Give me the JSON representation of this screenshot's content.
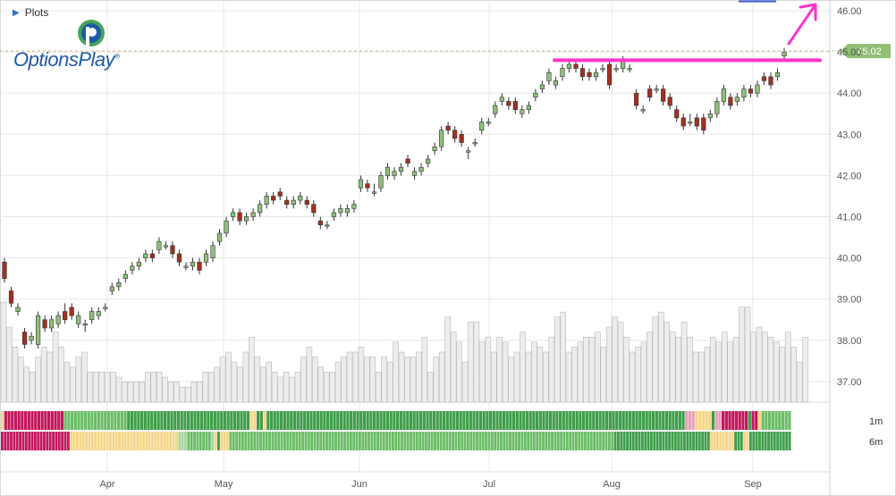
{
  "header": {
    "plots_label": "Plots",
    "logo_text": "OptionsPlay",
    "logo_reg": "®"
  },
  "price_tag": "45.02",
  "colors": {
    "up": "#8fc07a",
    "down": "#a33020",
    "magenta": "#ff33cc",
    "tag": "#8fbf74",
    "vol": "#ededed",
    "vol_stroke": "#b8b8b8",
    "grid": "#e8e8e8",
    "blue_bar": "#3355cc"
  },
  "score_colors": {
    "r": "#c2185b",
    "p": "#e8a0b8",
    "y": "#f5d68a",
    "l": "#a8d5a0",
    "m": "#6bbd67",
    "g": "#3f9e4a"
  },
  "chart_data": {
    "type": "candlestick",
    "y_ticks": [
      "37.00",
      "38.00",
      "39.00",
      "40.00",
      "41.00",
      "42.00",
      "43.00",
      "44.00",
      "45.00",
      "46.00"
    ],
    "x_ticks": [
      "Apr",
      "May",
      "Jun",
      "Jul",
      "Aug",
      "Sep"
    ],
    "ylim": [
      36.5,
      46.3
    ],
    "resistance_level": 44.8,
    "last_price": 45.02,
    "candles": [
      [
        39.9,
        39.5,
        40.0,
        39.4
      ],
      [
        39.2,
        38.9,
        39.3,
        38.8
      ],
      [
        38.7,
        38.8,
        38.9,
        38.6
      ],
      [
        38.2,
        37.9,
        38.3,
        37.8
      ],
      [
        38.0,
        38.1,
        38.2,
        37.9
      ],
      [
        37.9,
        38.6,
        38.7,
        37.8
      ],
      [
        38.5,
        38.3,
        38.6,
        38.2
      ],
      [
        38.3,
        38.5,
        38.6,
        38.2
      ],
      [
        38.4,
        38.6,
        38.7,
        38.3
      ],
      [
        38.7,
        38.5,
        38.9,
        38.4
      ],
      [
        38.8,
        38.6,
        38.9,
        38.5
      ],
      [
        38.4,
        38.6,
        38.7,
        38.3
      ],
      [
        38.4,
        38.4,
        38.5,
        38.2
      ],
      [
        38.5,
        38.7,
        38.8,
        38.4
      ],
      [
        38.6,
        38.7,
        38.8,
        38.5
      ],
      [
        38.8,
        38.8,
        38.9,
        38.7
      ],
      [
        39.2,
        39.3,
        39.4,
        39.1
      ],
      [
        39.3,
        39.4,
        39.5,
        39.2
      ],
      [
        39.5,
        39.6,
        39.7,
        39.4
      ],
      [
        39.7,
        39.8,
        39.9,
        39.6
      ],
      [
        39.8,
        39.9,
        40.0,
        39.7
      ],
      [
        40.0,
        40.1,
        40.2,
        39.9
      ],
      [
        40.1,
        40.0,
        40.2,
        39.9
      ],
      [
        40.2,
        40.4,
        40.5,
        40.1
      ],
      [
        40.3,
        40.3,
        40.4,
        40.2
      ],
      [
        40.3,
        40.1,
        40.4,
        40.0
      ],
      [
        40.1,
        39.9,
        40.2,
        39.8
      ],
      [
        39.8,
        39.8,
        39.9,
        39.7
      ],
      [
        39.8,
        39.9,
        40.0,
        39.7
      ],
      [
        39.9,
        39.7,
        40.0,
        39.6
      ],
      [
        39.9,
        40.1,
        40.2,
        39.8
      ],
      [
        40.0,
        40.3,
        40.4,
        39.9
      ],
      [
        40.4,
        40.6,
        40.7,
        40.3
      ],
      [
        40.6,
        40.9,
        41.0,
        40.5
      ],
      [
        41.0,
        41.1,
        41.2,
        40.9
      ],
      [
        41.1,
        40.9,
        41.2,
        40.8
      ],
      [
        40.9,
        41.0,
        41.1,
        40.8
      ],
      [
        41.0,
        41.1,
        41.2,
        40.9
      ],
      [
        41.1,
        41.3,
        41.4,
        41.0
      ],
      [
        41.3,
        41.5,
        41.6,
        41.2
      ],
      [
        41.5,
        41.4,
        41.6,
        41.3
      ],
      [
        41.6,
        41.5,
        41.7,
        41.4
      ],
      [
        41.4,
        41.3,
        41.5,
        41.2
      ],
      [
        41.3,
        41.4,
        41.5,
        41.2
      ],
      [
        41.4,
        41.5,
        41.6,
        41.3
      ],
      [
        41.4,
        41.3,
        41.5,
        41.2
      ],
      [
        41.3,
        41.1,
        41.4,
        41.0
      ],
      [
        40.9,
        40.8,
        41.0,
        40.7
      ],
      [
        40.8,
        40.8,
        40.9,
        40.7
      ],
      [
        41.0,
        41.1,
        41.2,
        40.9
      ],
      [
        41.1,
        41.2,
        41.3,
        41.0
      ],
      [
        41.1,
        41.2,
        41.3,
        41.0
      ],
      [
        41.2,
        41.3,
        41.4,
        41.1
      ],
      [
        41.7,
        41.9,
        42.0,
        41.6
      ],
      [
        41.8,
        41.7,
        41.9,
        41.6
      ],
      [
        41.6,
        41.6,
        41.8,
        41.5
      ],
      [
        41.7,
        42.0,
        42.1,
        41.6
      ],
      [
        42.0,
        42.2,
        42.3,
        41.9
      ],
      [
        42.0,
        42.1,
        42.2,
        41.9
      ],
      [
        42.1,
        42.2,
        42.3,
        42.0
      ],
      [
        42.4,
        42.3,
        42.5,
        42.2
      ],
      [
        42.0,
        42.1,
        42.2,
        41.9
      ],
      [
        42.1,
        42.2,
        42.3,
        42.0
      ],
      [
        42.3,
        42.4,
        42.5,
        42.2
      ],
      [
        42.6,
        42.7,
        42.8,
        42.5
      ],
      [
        42.7,
        43.1,
        43.2,
        42.6
      ],
      [
        43.2,
        43.1,
        43.3,
        43.0
      ],
      [
        43.1,
        42.9,
        43.2,
        42.8
      ],
      [
        43.0,
        42.8,
        43.1,
        42.7
      ],
      [
        42.6,
        42.6,
        42.7,
        42.4
      ],
      [
        42.8,
        42.8,
        42.9,
        42.7
      ],
      [
        43.1,
        43.3,
        43.4,
        43.0
      ],
      [
        43.3,
        43.3,
        43.4,
        43.2
      ],
      [
        43.5,
        43.7,
        43.8,
        43.4
      ],
      [
        43.8,
        43.9,
        44.0,
        43.7
      ],
      [
        43.8,
        43.7,
        43.9,
        43.6
      ],
      [
        43.8,
        43.6,
        43.9,
        43.5
      ],
      [
        43.5,
        43.6,
        43.7,
        43.4
      ],
      [
        43.6,
        43.7,
        43.8,
        43.5
      ],
      [
        43.9,
        44.0,
        44.1,
        43.8
      ],
      [
        44.1,
        44.2,
        44.3,
        44.0
      ],
      [
        44.3,
        44.5,
        44.6,
        44.2
      ],
      [
        44.2,
        44.3,
        44.4,
        44.1
      ],
      [
        44.4,
        44.6,
        44.7,
        44.3
      ],
      [
        44.6,
        44.7,
        44.8,
        44.5
      ],
      [
        44.7,
        44.6,
        44.8,
        44.5
      ],
      [
        44.6,
        44.4,
        44.7,
        44.3
      ],
      [
        44.5,
        44.4,
        44.6,
        44.3
      ],
      [
        44.4,
        44.5,
        44.6,
        44.3
      ],
      [
        44.6,
        44.6,
        44.7,
        44.5
      ],
      [
        44.7,
        44.2,
        44.8,
        44.1
      ],
      [
        44.6,
        44.6,
        44.7,
        44.5
      ],
      [
        44.6,
        44.8,
        44.9,
        44.5
      ],
      [
        44.6,
        44.6,
        44.7,
        44.5
      ],
      [
        44.0,
        43.7,
        44.1,
        43.6
      ],
      [
        43.6,
        43.6,
        43.7,
        43.5
      ],
      [
        44.1,
        43.9,
        44.2,
        43.8
      ],
      [
        44.1,
        44.1,
        44.2,
        44.0
      ],
      [
        44.1,
        43.8,
        44.2,
        43.7
      ],
      [
        43.9,
        43.7,
        44.0,
        43.6
      ],
      [
        43.6,
        43.4,
        43.7,
        43.3
      ],
      [
        43.4,
        43.2,
        43.5,
        43.1
      ],
      [
        43.3,
        43.3,
        43.5,
        43.2
      ],
      [
        43.4,
        43.2,
        43.5,
        43.1
      ],
      [
        43.4,
        43.1,
        43.5,
        43.0
      ],
      [
        43.4,
        43.5,
        43.6,
        43.3
      ],
      [
        43.5,
        43.8,
        43.9,
        43.4
      ],
      [
        43.8,
        44.1,
        44.2,
        43.7
      ],
      [
        43.9,
        43.7,
        44.0,
        43.6
      ],
      [
        43.8,
        43.9,
        44.0,
        43.7
      ],
      [
        43.9,
        44.1,
        44.2,
        43.8
      ],
      [
        44.1,
        44.0,
        44.2,
        43.9
      ],
      [
        44.0,
        44.2,
        44.3,
        43.9
      ],
      [
        44.4,
        44.3,
        44.5,
        44.2
      ],
      [
        44.4,
        44.2,
        44.5,
        44.1
      ],
      [
        44.4,
        44.5,
        44.6,
        44.3
      ],
      [
        44.9,
        45.0,
        45.1,
        44.8
      ]
    ],
    "volume": [
      20,
      15,
      11,
      9,
      7,
      6,
      9,
      11,
      10,
      14,
      11,
      8,
      7,
      9,
      10,
      6,
      6,
      6,
      6,
      6,
      5,
      4,
      4,
      4,
      4,
      6,
      6,
      6,
      5,
      4,
      4,
      3,
      3,
      4,
      4,
      6,
      6,
      7,
      9,
      10,
      8,
      7,
      10,
      13,
      9,
      7,
      8,
      6,
      5,
      6,
      5,
      6,
      9,
      11,
      9,
      7,
      6,
      6,
      8,
      9,
      10,
      10,
      11,
      9,
      9,
      6,
      9,
      8,
      12,
      10,
      9,
      9,
      10,
      13,
      6,
      9,
      10,
      17,
      14,
      12,
      8,
      16,
      16,
      12,
      13,
      10,
      13,
      12,
      9,
      10,
      14,
      10,
      12,
      11,
      10,
      13,
      17,
      18,
      10,
      11,
      12,
      13,
      13,
      14,
      11,
      15,
      17,
      16,
      13,
      10,
      11,
      12,
      14,
      17,
      18,
      16,
      14,
      13,
      16,
      13,
      10,
      10,
      11,
      13,
      12,
      14,
      12,
      13,
      19,
      19,
      14,
      15,
      14,
      13,
      12,
      11,
      14,
      11,
      8,
      13
    ],
    "score_1m": "yrrrrrrrrrrrrrrrrrrmmmmmmmmmmmmmmmmmmmgggggggggggggggggggggggggggggggggggggyyggyggggggggggggggggggggggggggggggggggggggggggggggggggggggggggggggggggggggggggggggggggggggggggggggggggggggggggggggggggggggggggggggpppyyyyygpprrrrrrrrgrrymmmmmmmmm",
    "score_6m": "rrrrrrrrrrrrrrrrrrrrrrryyyyyyyyyyyyyyyyyyyyyyyyyyyyyyyyyyyylllmmmmmmmmlygyyymmmmmmmmmmmmmmmmmmmmmmmmmmmmmmmmmmmmmmmmmmmmmmmmmmmmmmmmmmmmmmmmmmmmmmmmmmmmmmmmmmmmmmmmmmmmmmmmmmmmmmmmmmmmmmmmmmmmmmmmmmmmmmmmggggggggggggggggggggggggggggggggyyyyyyyygggyygggggggggggggg",
    "score_labels": [
      "1m",
      "6m"
    ]
  }
}
